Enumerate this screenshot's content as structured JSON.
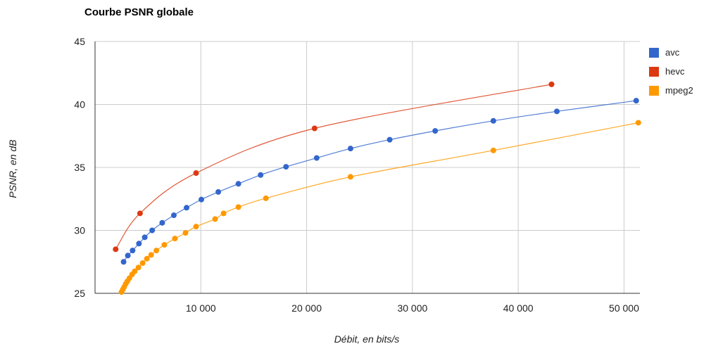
{
  "chart_data": {
    "type": "line",
    "title": "Courbe PSNR globale",
    "xlabel": "Débit, en bits/s",
    "ylabel": "PSNR, en dB",
    "xlim": [
      0,
      51500
    ],
    "ylim": [
      25,
      45
    ],
    "xticks": [
      10000,
      20000,
      30000,
      40000,
      50000
    ],
    "xtick_labels": [
      "10 000",
      "20 000",
      "30 000",
      "40 000",
      "50 000"
    ],
    "yticks": [
      25,
      30,
      35,
      40,
      45
    ],
    "ytick_labels": [
      "25",
      "30",
      "35",
      "40",
      "45"
    ],
    "grid": true,
    "legend_position": "right",
    "series": [
      {
        "name": "avc",
        "color": "#3366cc",
        "x": [
          2700,
          3100,
          3550,
          4150,
          4700,
          5400,
          6350,
          7450,
          8650,
          10050,
          11650,
          13550,
          15650,
          18050,
          20950,
          24150,
          27850,
          32150,
          37650,
          43650,
          51150
        ],
        "y": [
          27.5,
          28.0,
          28.4,
          28.95,
          29.45,
          30.0,
          30.6,
          31.2,
          31.8,
          32.45,
          33.05,
          33.7,
          34.4,
          35.05,
          35.75,
          36.5,
          37.2,
          37.9,
          38.7,
          39.45,
          40.3
        ]
      },
      {
        "name": "hevc",
        "color": "#dc3912",
        "x": [
          1950,
          4250,
          9550,
          20750,
          43150
        ],
        "y": [
          28.5,
          31.35,
          34.55,
          38.1,
          41.6
        ]
      },
      {
        "name": "mpeg2",
        "color": "#ff9900",
        "x": [
          2500,
          2620,
          2750,
          2900,
          3050,
          3250,
          3500,
          3750,
          4100,
          4500,
          4900,
          5300,
          5800,
          6550,
          7550,
          8550,
          9550,
          11350,
          12150,
          13550,
          16150,
          24150,
          37650,
          51350
        ],
        "y": [
          25.1,
          25.3,
          25.5,
          25.75,
          25.95,
          26.2,
          26.5,
          26.75,
          27.05,
          27.4,
          27.75,
          28.05,
          28.4,
          28.85,
          29.35,
          29.8,
          30.3,
          30.9,
          31.35,
          31.85,
          32.55,
          34.25,
          36.35,
          38.55
        ]
      }
    ]
  }
}
